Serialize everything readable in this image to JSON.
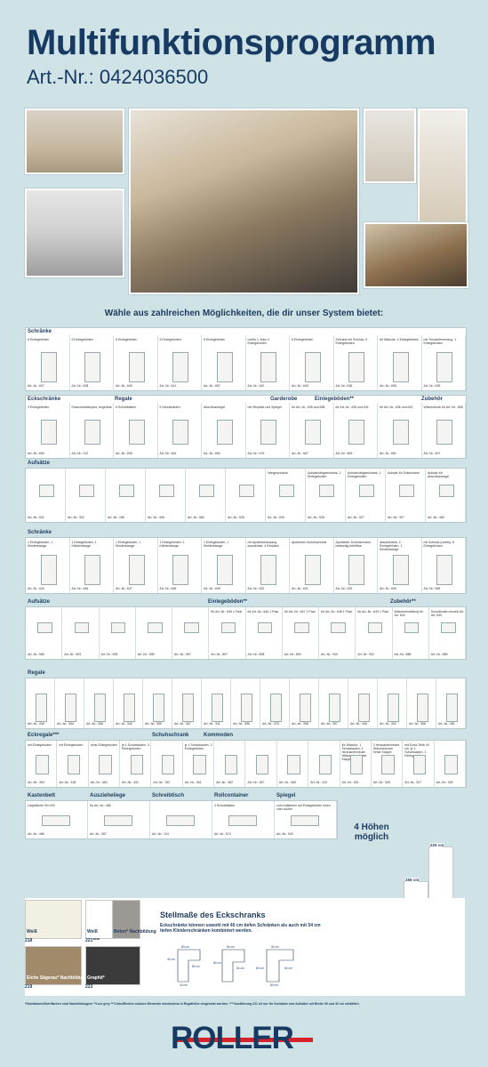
{
  "header": {
    "title": "Multifunktionsprogramm",
    "art_nr": "Art.-Nr.: 0424036500"
  },
  "headline": "Wähle aus zahlreichen Möglichkeiten, die dir unser System bietet:",
  "sections": {
    "schraenke1": {
      "title": "Schränke",
      "items": [
        {
          "label": "6 Einlegeböden",
          "art": "Art.-Nr.: 637"
        },
        {
          "label": "6 Einlegeböden",
          "art": "Art.-Nr.: 638"
        },
        {
          "label": "5 Einlegeböden",
          "art": "Art.-Nr.: 640"
        },
        {
          "label": "5 Einlegeböden",
          "art": "Art.-Nr.: 641"
        },
        {
          "label": "5 Einlegeböden",
          "art": "Art.-Nr.: 657"
        },
        {
          "label": "rechts 1, links 4 Einlegeböden",
          "art": "Art.-Nr.: 642"
        },
        {
          "label": "6 Einlegeböden",
          "art": "Art.-Nr.: 643"
        },
        {
          "label": "Schrank mit Schloss, 5 Einlegeböden",
          "art": "Art.-Nr.: 636"
        },
        {
          "label": "für Wäsche, 4 Einlegeböden",
          "art": "Art.-Nr.: 658"
        },
        {
          "label": "mit Trompeteneinzug, 1 Einlegeboden",
          "art": "Art.-Nr.: 635"
        }
      ]
    },
    "row2": {
      "groups": [
        {
          "title": "Eckschränke",
          "items": [
            {
              "label": "3 Einlegeböden",
              "art": "Art.-Nr.: 650"
            },
            {
              "label": "Eckschrankkorpus, begehbar",
              "art": "Art.-Nr.: 312"
            }
          ]
        },
        {
          "title": "Regale",
          "items": [
            {
              "label": "6 Schubkästen",
              "art": "Art.-Nr.: 639"
            },
            {
              "label": "6 Schubkästen",
              "art": "Art.-Nr.: 644"
            },
            {
              "label": "Abschlussregal",
              "art": "Art.-Nr.: 654"
            }
          ]
        },
        {
          "title": "Garderobe",
          "items": [
            {
              "label": "mit Sitzplatz und Spiegel",
              "art": "Art.-Nr.: 676"
            }
          ]
        },
        {
          "title": "Einlegeböden**",
          "items": [
            {
              "label": "für Art.-Nr.: 638 und 658",
              "art": "Art.-Nr.: 667"
            },
            {
              "label": "für Art.-Nr.: 635 und 641",
              "art": "Art.-Nr.: 663"
            },
            {
              "label": "für Art.-Nr.: 636 und 643",
              "art": "Art.-Nr.: 681"
            }
          ]
        },
        {
          "title": "Zubehör",
          "items": [
            {
              "label": "Wäschekorb für Art.-Nr.: 658",
              "art": "Art.-Nr.: 697"
            }
          ]
        }
      ]
    },
    "aufsaetze1": {
      "title": "Aufsätze",
      "items": [
        {
          "label": "",
          "art": "Art.-Nr.: 631"
        },
        {
          "label": "",
          "art": "Art.-Nr.: 302"
        },
        {
          "label": "",
          "art": "Art.-Nr.: 185"
        },
        {
          "label": "",
          "art": "Art.-Nr.: 306"
        },
        {
          "label": "",
          "art": "Art.-Nr.: 582"
        },
        {
          "label": "",
          "art": "Art.-Nr.: 528"
        },
        {
          "label": "Hängeschrank",
          "art": "Art.-Nr.: 530"
        },
        {
          "label": "Aufsatzhängeschrank, 1 Einlegeboden",
          "art": "Art.-Nr.: 528"
        },
        {
          "label": "Aufsatzhängeschrank, 1 Einlegeboden",
          "art": "Art.-Nr.: 527"
        },
        {
          "label": "Aufsatz für Eckschrank",
          "art": "Art.-Nr.: 307"
        },
        {
          "label": "Aufsatz für Abschlussregal",
          "art": "Art.-Nr.: 480"
        }
      ]
    },
    "schraenke2": {
      "title": "Schränke",
      "items": [
        {
          "label": "1 Einlegeboden, 1 Kleiderstange",
          "art": "Art.-Nr.: 640"
        },
        {
          "label": "1 Einlegeboden, 1 Kleiderstange",
          "art": "Art.-Nr.: 646"
        },
        {
          "label": "1 Einlegeboden, 1 Kleiderstange",
          "art": "Art.-Nr.: 647"
        },
        {
          "label": "1 Einlegeboden, 1 Kleiderstange",
          "art": "Art.-Nr.: 648"
        },
        {
          "label": "1 Einlegeboden, 1 Kleiderstange",
          "art": "Art.-Nr.: 649"
        },
        {
          "label": "mit Apothekerauszug ausziehbar, 4 Einsätze",
          "art": "Art.-Nr.: 632"
        },
        {
          "label": "Apotheker-Schuhschrank",
          "art": "Art.-Nr.: 631"
        },
        {
          "label": "Apotheker-Schuhschrank, beidseitig befüllbar",
          "art": "Art.-Nr.: 633"
        },
        {
          "label": "abschließbar, 2 Einlegeböden, 1 Kleiderstange",
          "art": "Art.-Nr.: 699"
        },
        {
          "label": "mit Schloss (rechts), 6 Einlegeböden",
          "art": "Art.-Nr.: 665"
        }
      ]
    },
    "row5": {
      "aufsaetze_title": "Aufsätze",
      "einlegeboeden_title": "Einlegeböden**",
      "zubehoer_title": "Zubehör**",
      "items": [
        {
          "label": "",
          "art": "Art.-Nr.: 586"
        },
        {
          "label": "",
          "art": "Art.-Nr.: 593"
        },
        {
          "label": "",
          "art": "Art.-Nr.: 595"
        },
        {
          "label": "",
          "art": "Art.-Nr.: 596"
        },
        {
          "label": "",
          "art": "Art.-Nr.: 597"
        },
        {
          "label": "für Art.-Nr.: 645 1 Paar",
          "art": "Art.-Nr.: 897"
        },
        {
          "label": "für Art.-Nr.: 646 1 Paar",
          "art": "Art.-Nr.: 898"
        },
        {
          "label": "für Art.-Nr.: 647 1 Paar",
          "art": "Art.-Nr.: 899"
        },
        {
          "label": "für Art.-Nr.: 648 1 Paar",
          "art": "Art.-Nr.: 900"
        },
        {
          "label": "für Art.-Nr.: 649 1 Paar",
          "art": "Art.-Nr.: 902"
        },
        {
          "label": "Wäscheeinteilung für Art. 640",
          "art": "Art.-Nr.: 888"
        },
        {
          "label": "Schuhboden einzeln für Art. 649",
          "art": "Art.-Nr.: 889"
        }
      ]
    },
    "regale": {
      "title": "Regale",
      "items": [
        {
          "art": "Art.-Nr.: 339"
        },
        {
          "art": "Art.-Nr.: 354"
        },
        {
          "art": "Art.-Nr.: 366"
        },
        {
          "art": "Art.-Nr.: 340"
        },
        {
          "art": "Art.-Nr.: 355"
        },
        {
          "art": "Art.-Nr.: 367"
        },
        {
          "art": "Art.-Nr.: 341"
        },
        {
          "art": "Art.-Nr.: 356"
        },
        {
          "art": "Art.-Nr.: 375"
        },
        {
          "art": "Art.-Nr.: 358"
        },
        {
          "art": "Art.-Nr.: 357"
        },
        {
          "art": "Art.-Nr.: 446"
        },
        {
          "art": "Art.-Nr.: 352"
        },
        {
          "art": "Art.-Nr.: 358"
        },
        {
          "art": "Art.-Nr.: 481"
        }
      ]
    },
    "row7": {
      "eckregale_title": "Eckregale***",
      "schuhschrank_title": "Schuhschrank",
      "kommoden_title": "Kommoden",
      "items": [
        {
          "label": "mit Einlegeboden",
          "art": "Art.-Nr.: 353"
        },
        {
          "label": "mit Einlegeboden",
          "art": "Art.-Nr.: 318"
        },
        {
          "label": "ohne Einlegeboden",
          "art": "Art.-Nr.: 483"
        },
        {
          "label": "je 1 Schubkasten, 3 Einlegeboden",
          "art": "Art.-Nr.: 331"
        },
        {
          "label": "",
          "art": "Art.-Nr.: 332"
        },
        {
          "label": "je 1 Schubkasten, 2 Einlegeböden",
          "art": "Art.-Nr.: 361"
        },
        {
          "label": "",
          "art": "Art.-Nr.: 362"
        },
        {
          "label": "",
          "art": "Art.-Nr.: 367"
        },
        {
          "label": "",
          "art": "Art.-Nr.: 368"
        },
        {
          "label": "",
          "art": "Art.-Nr.: 319"
        },
        {
          "label": "für Wäsche, 1 Schubkasten, 1 herausnehmbare Wäschebox hinter Klappe",
          "art": "Art.-Nr.: 324"
        },
        {
          "label": "2 herausnehmbare Wäscheboxen hinter Klappe",
          "art": "Art.-Nr.: 325"
        },
        {
          "label": "mit Extra-Tiefe 40 cm, je 1 Schubkasten, 2 Einlegeböden",
          "art": "Art.-Nr.: 327"
        },
        {
          "label": "",
          "art": "Art.-Nr.: 328"
        }
      ]
    },
    "row8": {
      "groups": [
        {
          "title": "Kastenbett",
          "label": "Liegefläche 90×200",
          "art": "Art.-Nr.: 486"
        },
        {
          "title": "Auszieheliege",
          "label": "für Art.-Nr.: 486",
          "art": "Art.-Nr.: 287"
        },
        {
          "title": "Schreibtisch",
          "label": "",
          "art": "Art.-Nr.: 104"
        },
        {
          "title": "Rollcontainer",
          "label": "4 Schubkästen",
          "art": "Art.-Nr.: 574"
        },
        {
          "title": "Spiegel",
          "label": "zum Aufkleben auf Einlegeböden innen oder außen",
          "art": "Art.-Nr.: 920"
        }
      ]
    }
  },
  "hoehen": {
    "title": "4 Höhen möglich",
    "values": [
      "96 cm",
      "126 cm",
      "165 cm",
      "225 cm"
    ],
    "levels": [
      96,
      126,
      165,
      225
    ]
  },
  "swatches": [
    {
      "name": "Weiß",
      "code": "218",
      "color": "#f2efe3"
    },
    {
      "name": "Weiß",
      "code": "221****",
      "color": "#ffffff"
    },
    {
      "name": "Beton* Nachbildung",
      "code": "",
      "color": "#9c9894"
    },
    {
      "name": "Eiche Sägerau* Nachbildung",
      "code": "219",
      "color": "#a08a6a"
    },
    {
      "name": "Graphit*",
      "code": "223",
      "color": "#3b3b3b"
    }
  ],
  "stellmasse": {
    "title": "Stellmaße des Eckschranks",
    "text": "Eckschränke können sowohl mit 40 cm tiefen Schränken als auch mit 54 cm tiefen Kleiderschränken kombiniert werden."
  },
  "footnote": "*Holzfarben/Oberflächen sind Nachbildungen! **Line grey ***Links/Rechts müssen Elemente mindestens in Regalhöhe eingesetzt werden. ****Ausführung 221 ist nur für Schränke und Aufsätze mit Breite 30 und 40 cm erhältlich.",
  "logo": "ROLLER"
}
